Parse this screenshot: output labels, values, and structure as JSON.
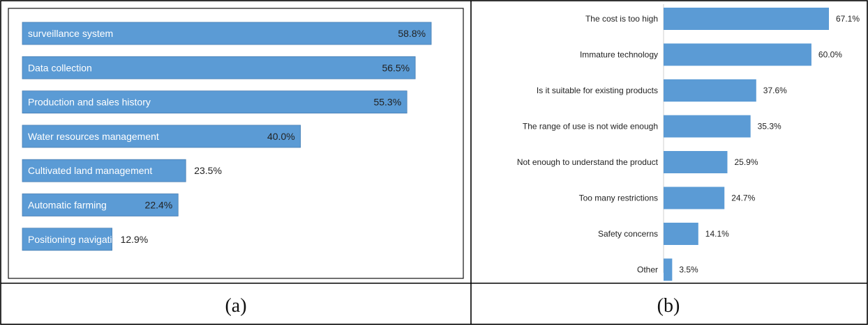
{
  "captions": {
    "a": "(a)",
    "b": "(b)"
  },
  "chart_data": [
    {
      "type": "bar",
      "orientation": "horizontal",
      "categories": [
        "surveillance system",
        "Data collection",
        "Production and sales history",
        "Water resources management",
        "Cultivated land management",
        "Automatic farming",
        "Positioning navigation"
      ],
      "values": [
        58.8,
        56.5,
        55.3,
        40.0,
        23.5,
        22.4,
        12.9
      ],
      "value_labels": [
        "58.8%",
        "56.5%",
        "55.3%",
        "40.0%",
        "23.5%",
        "22.4%",
        "12.9%"
      ],
      "category_labels_inside_bars": true,
      "xlim": [
        0,
        61
      ],
      "grid": false,
      "colors": {
        "bar": "#5b9bd5"
      }
    },
    {
      "type": "bar",
      "orientation": "horizontal",
      "categories": [
        "The cost is too high",
        "Immature technology",
        "Is it suitable for existing products",
        "The range of use is not wide enough",
        "Not enough to understand the product",
        "Too many restrictions",
        "Safety concerns",
        "Other"
      ],
      "values": [
        67.1,
        60.0,
        37.6,
        35.3,
        25.9,
        24.7,
        14.1,
        3.5
      ],
      "value_labels": [
        "67.1%",
        "60.0%",
        "37.6%",
        "35.3%",
        "25.9%",
        "24.7%",
        "14.1%",
        "3.5%"
      ],
      "category_labels_inside_bars": false,
      "xlim": [
        0,
        67.1
      ],
      "grid": false,
      "colors": {
        "bar": "#5b9bd5"
      }
    }
  ]
}
